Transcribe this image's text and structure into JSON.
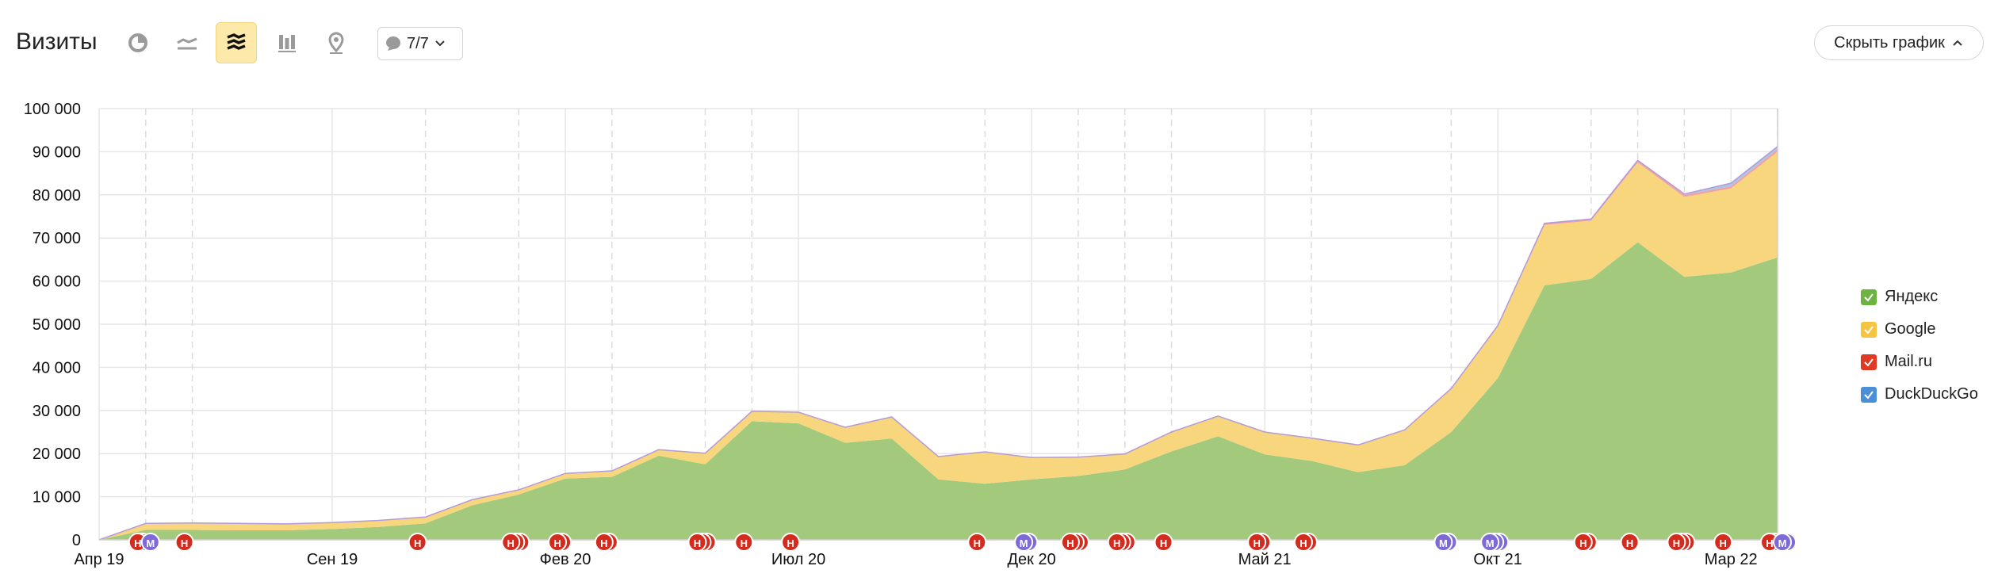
{
  "header": {
    "title": "Визиты",
    "notes_label": "7/7",
    "hide_chart_label": "Скрыть график",
    "tools": [
      {
        "icon": "pie-chart-icon",
        "active": false
      },
      {
        "icon": "line-chart-icon",
        "active": false
      },
      {
        "icon": "stacked-area-icon",
        "active": true
      },
      {
        "icon": "stacked-bar-icon",
        "active": false
      },
      {
        "icon": "map-pin-icon",
        "active": false
      }
    ]
  },
  "legend": [
    {
      "label": "Яндекс",
      "color": "#6cb33f"
    },
    {
      "label": "Google",
      "color": "#f5c542"
    },
    {
      "label": "Mail.ru",
      "color": "#e03a24"
    },
    {
      "label": "DuckDuckGo",
      "color": "#4a90d9"
    }
  ],
  "chart_data": {
    "type": "area",
    "stacked": true,
    "x_tick_labels": [
      "Апр 19",
      "Сен 19",
      "Фев 20",
      "Июл 20",
      "Дек 20",
      "Май 21",
      "Окт 21",
      "Мар 22"
    ],
    "y_tick_labels": [
      "0",
      "10 000",
      "20 000",
      "30 000",
      "40 000",
      "50 000",
      "60 000",
      "70 000",
      "80 000",
      "90 000",
      "100 000"
    ],
    "ylim": [
      0,
      100000
    ],
    "x": [
      "2019-04",
      "2019-05",
      "2019-06",
      "2019-07",
      "2019-08",
      "2019-09",
      "2019-10",
      "2019-11",
      "2019-12",
      "2020-01",
      "2020-02",
      "2020-03",
      "2020-04",
      "2020-05",
      "2020-06",
      "2020-07",
      "2020-08",
      "2020-09",
      "2020-10",
      "2020-11",
      "2020-12",
      "2021-01",
      "2021-02",
      "2021-03",
      "2021-04",
      "2021-05",
      "2021-06",
      "2021-07",
      "2021-08",
      "2021-09",
      "2021-10",
      "2021-11",
      "2021-12",
      "2022-01",
      "2022-02",
      "2022-03",
      "2022-04"
    ],
    "series": [
      {
        "name": "Яндекс",
        "color": "#a3ca7c",
        "values": [
          0,
          2300,
          2300,
          2200,
          2200,
          2500,
          3000,
          3800,
          8000,
          10500,
          14200,
          14600,
          19500,
          17500,
          27500,
          27000,
          22500,
          23500,
          14000,
          13000,
          14000,
          14800,
          16300,
          20500,
          24000,
          19800,
          18300,
          15700,
          17300,
          25000,
          37500,
          59000,
          60500,
          69000,
          61000,
          62000,
          65500
        ]
      },
      {
        "name": "Google",
        "color": "#f8d67e",
        "values": [
          0,
          1400,
          1500,
          1500,
          1400,
          1400,
          1400,
          1400,
          1200,
          1000,
          1100,
          1300,
          1300,
          2500,
          2200,
          2500,
          3500,
          4900,
          5200,
          7300,
          5000,
          4300,
          3500,
          4400,
          4600,
          5100,
          5200,
          6200,
          8100,
          10000,
          12000,
          14000,
          13500,
          18500,
          18500,
          19500,
          24500
        ]
      },
      {
        "name": "Mail.ru",
        "color": "#f0a2a2",
        "values": [
          0,
          100,
          100,
          100,
          100,
          100,
          100,
          100,
          100,
          100,
          100,
          100,
          100,
          100,
          100,
          100,
          100,
          100,
          100,
          100,
          100,
          100,
          100,
          100,
          100,
          100,
          100,
          100,
          100,
          100,
          200,
          400,
          400,
          500,
          500,
          500,
          600
        ]
      },
      {
        "name": "DuckDuckGo",
        "color": "#a9c7ea",
        "values": [
          0,
          0,
          0,
          0,
          0,
          0,
          0,
          0,
          0,
          0,
          0,
          0,
          0,
          0,
          0,
          0,
          0,
          0,
          0,
          0,
          0,
          0,
          0,
          0,
          0,
          0,
          0,
          0,
          0,
          0,
          0,
          0,
          0,
          0,
          200,
          700,
          600
        ]
      }
    ],
    "note_markers": [
      {
        "label": "Н",
        "color": "#d42b1f",
        "x": "2019-05",
        "count": 2
      },
      {
        "label": "М",
        "color": "#7e6ad6",
        "x": "2019-05",
        "count": 1
      },
      {
        "label": "Н",
        "color": "#d42b1f",
        "x": "2019-06",
        "count": 1
      },
      {
        "label": "Н",
        "color": "#d42b1f",
        "x": "2019-11",
        "count": 1
      },
      {
        "label": "Н",
        "color": "#d42b1f",
        "x": "2020-01",
        "count": 3
      },
      {
        "label": "Н",
        "color": "#d42b1f",
        "x": "2020-02",
        "count": 2
      },
      {
        "label": "Н",
        "color": "#d42b1f",
        "x": "2020-03",
        "count": 2
      },
      {
        "label": "Н",
        "color": "#d42b1f",
        "x": "2020-05",
        "count": 3
      },
      {
        "label": "Н",
        "color": "#d42b1f",
        "x": "2020-06",
        "count": 1
      },
      {
        "label": "Н",
        "color": "#d42b1f",
        "x": "2020-07",
        "count": 1
      },
      {
        "label": "Н",
        "color": "#d42b1f",
        "x": "2020-11",
        "count": 1
      },
      {
        "label": "М",
        "color": "#7e6ad6",
        "x": "2020-12",
        "count": 2
      },
      {
        "label": "Н",
        "color": "#d42b1f",
        "x": "2021-01",
        "count": 3
      },
      {
        "label": "Н",
        "color": "#d42b1f",
        "x": "2021-02",
        "count": 3
      },
      {
        "label": "Н",
        "color": "#d42b1f",
        "x": "2021-03",
        "count": 1
      },
      {
        "label": "Н",
        "color": "#d42b1f",
        "x": "2021-05",
        "count": 2
      },
      {
        "label": "Н",
        "color": "#d42b1f",
        "x": "2021-06",
        "count": 2
      },
      {
        "label": "М",
        "color": "#7e6ad6",
        "x": "2021-09",
        "count": 2
      },
      {
        "label": "М",
        "color": "#7e6ad6",
        "x": "2021-10",
        "count": 3
      },
      {
        "label": "Н",
        "color": "#d42b1f",
        "x": "2021-12",
        "count": 2
      },
      {
        "label": "Н",
        "color": "#d42b1f",
        "x": "2022-01",
        "count": 1
      },
      {
        "label": "Н",
        "color": "#d42b1f",
        "x": "2022-02",
        "count": 3
      },
      {
        "label": "Н",
        "color": "#d42b1f",
        "x": "2022-03",
        "count": 1
      },
      {
        "label": "Н",
        "color": "#d42b1f",
        "x": "2022-04",
        "count": 2
      },
      {
        "label": "М",
        "color": "#7e6ad6",
        "x": "2022-04",
        "count": 2
      }
    ],
    "grid": true,
    "legend_position": "right"
  }
}
